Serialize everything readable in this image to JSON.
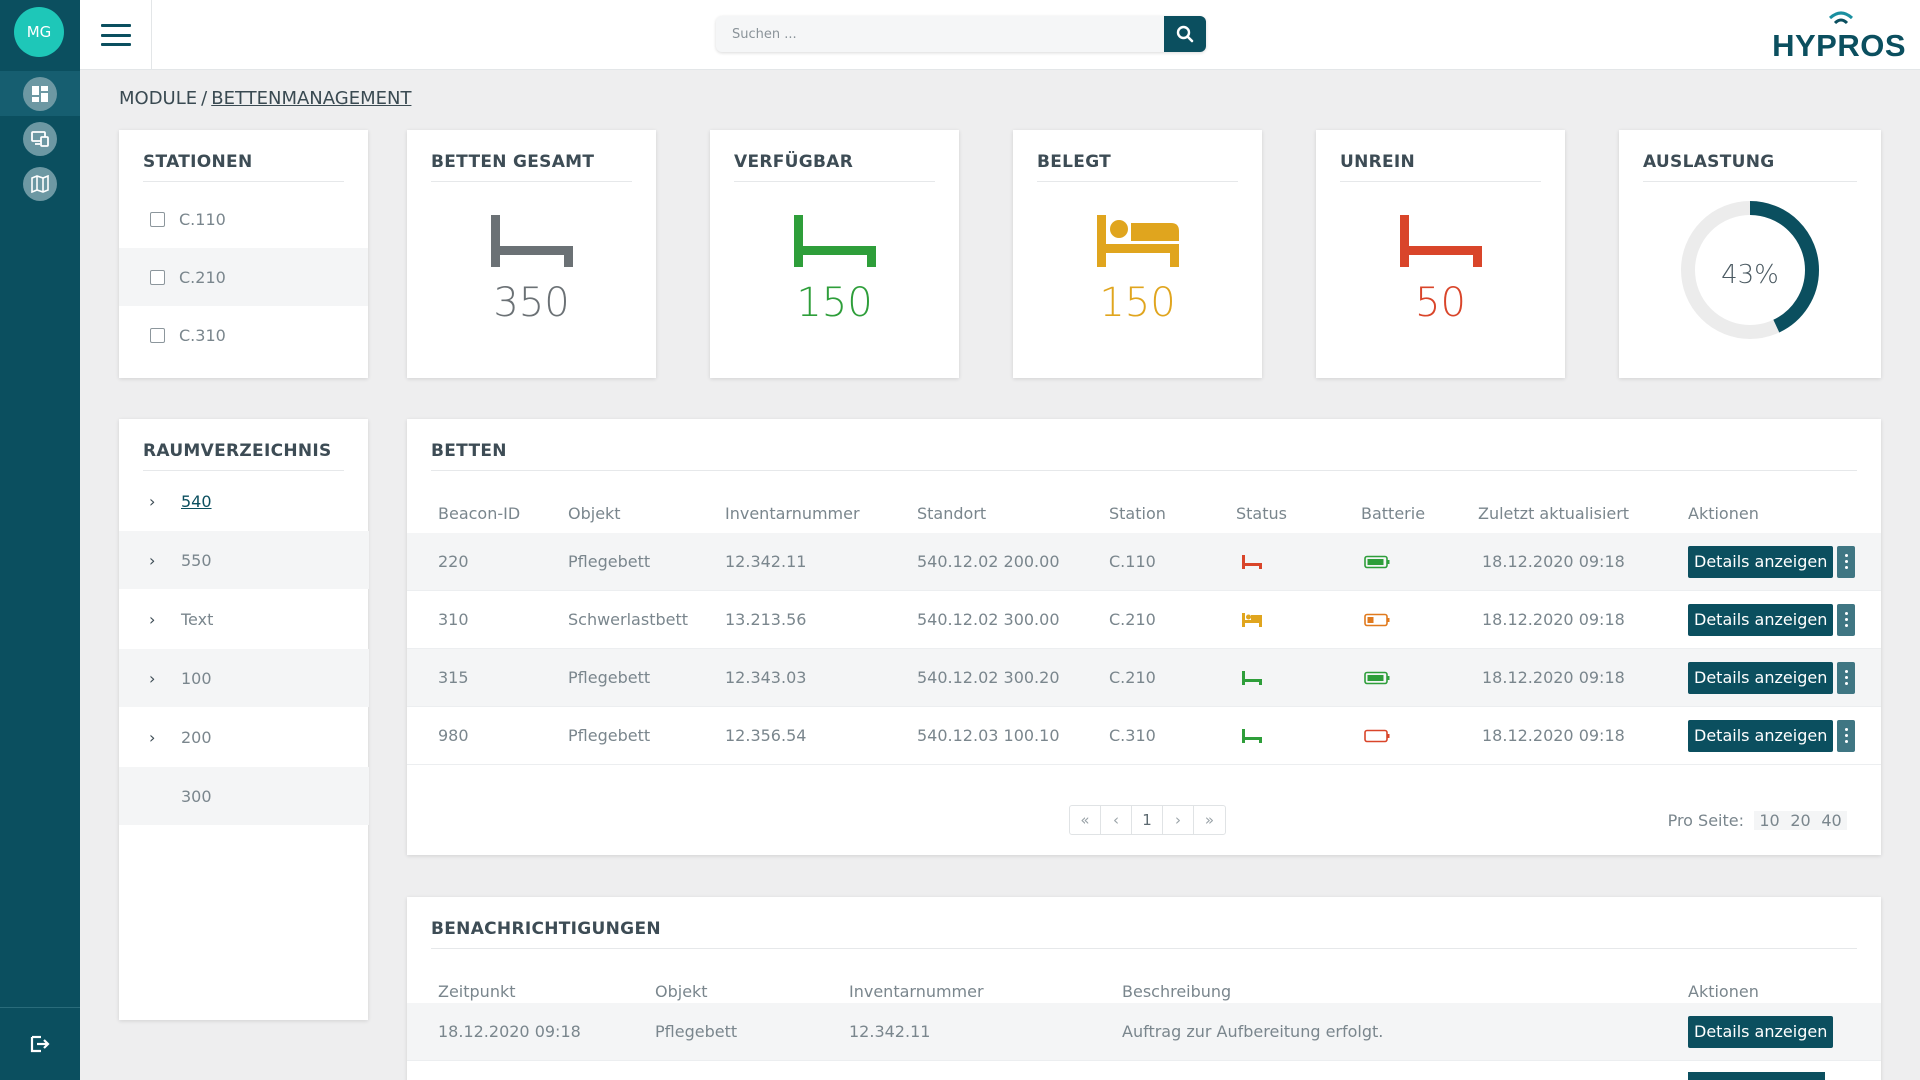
{
  "user": {
    "initials": "MG"
  },
  "search": {
    "placeholder": "Suchen ..."
  },
  "logo": {
    "text": "HYPROS"
  },
  "breadcrumb": {
    "root": "MODULE",
    "separator": "/",
    "current": "BETTENMANAGEMENT"
  },
  "stations": {
    "title": "STATIONEN",
    "items": [
      "C.110",
      "C.210",
      "C.310"
    ]
  },
  "stats": [
    {
      "title": "BETTEN GESAMT",
      "value": "350",
      "color": "#6b7175",
      "icon": "bed-empty-icon"
    },
    {
      "title": "VERFÜGBAR",
      "value": "150",
      "color": "#2e9e3a",
      "icon": "bed-empty-icon"
    },
    {
      "title": "BELEGT",
      "value": "150",
      "color": "#e0a51e",
      "icon": "bed-occupied-icon"
    },
    {
      "title": "UNREIN",
      "value": "50",
      "color": "#d9452a",
      "icon": "bed-empty-icon"
    }
  ],
  "utilization": {
    "title": "AUSLASTUNG",
    "label": "43%",
    "value": 0.43,
    "color": "#0b4f5f",
    "track_color": "#ececec"
  },
  "rooms": {
    "title": "RAUMVERZEICHNIS",
    "items": [
      {
        "label": "540",
        "expandable": true,
        "active": true
      },
      {
        "label": "550",
        "expandable": true,
        "active": false
      },
      {
        "label": "Text",
        "expandable": true,
        "active": false
      },
      {
        "label": "100",
        "expandable": true,
        "active": false
      },
      {
        "label": "200",
        "expandable": true,
        "active": false
      },
      {
        "label": "300",
        "expandable": false,
        "active": false
      }
    ]
  },
  "beds": {
    "title": "BETTEN",
    "columns": [
      "Beacon-ID",
      "Objekt",
      "Inventarnummer",
      "Standort",
      "Station",
      "Status",
      "Batterie",
      "Zuletzt aktualisiert",
      "Aktionen"
    ],
    "rows": [
      {
        "beacon": "220",
        "object": "Pflegebett",
        "inventory": "12.342.11",
        "location": "540.12.02 200.00",
        "station": "C.110",
        "status": "unrein",
        "status_color": "#d9452a",
        "battery": "full",
        "battery_color": "#2e9e3a",
        "updated": "18.12.2020 09:18",
        "action": "Details anzeigen"
      },
      {
        "beacon": "310",
        "object": "Schwerlastbett",
        "inventory": "13.213.56",
        "location": "540.12.02 300.00",
        "station": "C.210",
        "status": "belegt",
        "status_color": "#e0a51e",
        "battery": "low",
        "battery_color": "#e07a1e",
        "updated": "18.12.2020 09:18",
        "action": "Details anzeigen"
      },
      {
        "beacon": "315",
        "object": "Pflegebett",
        "inventory": "12.343.03",
        "location": "540.12.02 300.20",
        "station": "C.210",
        "status": "verfügbar",
        "status_color": "#2e9e3a",
        "battery": "full",
        "battery_color": "#2e9e3a",
        "updated": "18.12.2020 09:18",
        "action": "Details anzeigen"
      },
      {
        "beacon": "980",
        "object": "Pflegebett",
        "inventory": "12.356.54",
        "location": "540.12.03 100.10",
        "station": "C.310",
        "status": "verfügbar",
        "status_color": "#2e9e3a",
        "battery": "empty",
        "battery_color": "#d9452a",
        "updated": "18.12.2020 09:18",
        "action": "Details anzeigen"
      }
    ],
    "pagination": {
      "current_page": "1",
      "per_page_label": "Pro Seite:",
      "per_page_options": [
        "10",
        "20",
        "40"
      ]
    }
  },
  "notifications": {
    "title": "BENACHRICHTIGUNGEN",
    "columns": [
      "Zeitpunkt",
      "Objekt",
      "Inventarnummer",
      "Beschreibung",
      "Aktionen"
    ],
    "rows": [
      {
        "time": "18.12.2020 09:18",
        "object": "Pflegebett",
        "inventory": "12.342.11",
        "description": "Auftrag zur Aufbereitung erfolgt.",
        "action": "Details anzeigen"
      }
    ]
  }
}
